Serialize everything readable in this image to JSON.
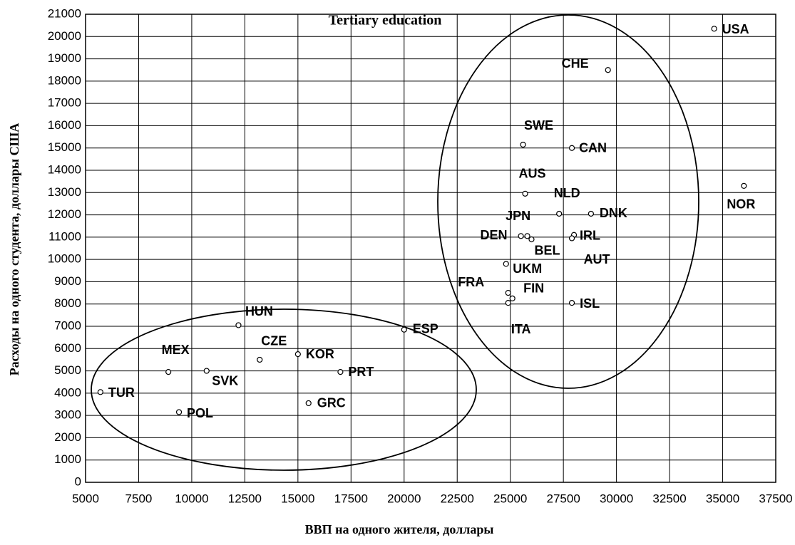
{
  "chart_data": {
    "type": "scatter",
    "title": "Tertiary education",
    "x_label": "ВВП на одного жителя, доллары",
    "y_label": "Расходы на одного студента, доллары США",
    "labels": [
      "USA",
      "CHE",
      "SWE",
      "CAN",
      "AUS",
      "NLD",
      "DNK",
      "NOR",
      "JPN",
      "DEN",
      "BEL",
      "IRL",
      "AUT",
      "UKM",
      "FRA",
      "FIN",
      "ITA",
      "ISL",
      "ESP",
      "HUN",
      "CZE",
      "KOR",
      "PRT",
      "GRC",
      "MEX",
      "SVK",
      "TUR",
      "POL"
    ],
    "x": [
      34600,
      29600,
      25600,
      27900,
      25700,
      27300,
      28800,
      36000,
      25500,
      25800,
      26000,
      28000,
      27900,
      24800,
      24900,
      25100,
      24900,
      27900,
      20000,
      12200,
      13200,
      15000,
      17000,
      15500,
      8900,
      10700,
      5700,
      9400
    ],
    "values": [
      20350,
      18500,
      15150,
      15000,
      12950,
      12050,
      12050,
      13300,
      11050,
      11050,
      10900,
      11100,
      10950,
      9800,
      8500,
      8250,
      8050,
      8050,
      6850,
      7050,
      5500,
      5750,
      4950,
      3550,
      4950,
      5000,
      4050,
      3150
    ],
    "color": "#000000",
    "xlim": [
      5000,
      37500
    ],
    "xticks": [
      5000,
      7500,
      10000,
      12500,
      15000,
      17500,
      20000,
      22500,
      25000,
      27500,
      30000,
      32500,
      35000,
      37500
    ],
    "ylim": [
      0,
      21000
    ],
    "yticks": [
      0,
      1000,
      2000,
      3000,
      4000,
      5000,
      6000,
      7000,
      8000,
      9000,
      10000,
      11000,
      12000,
      13000,
      14000,
      15000,
      16000,
      17000,
      18000,
      19000,
      20000,
      21000
    ],
    "grid": true
  }
}
